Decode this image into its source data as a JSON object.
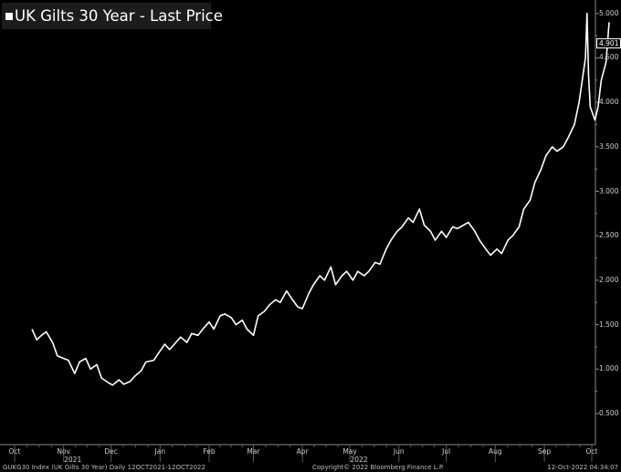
{
  "chart_data": {
    "type": "line",
    "title": "UK Gilts 30 Year - Last Price",
    "ylim": [
      0.5,
      5.5
    ],
    "yticks": [
      "0.500",
      "1.000",
      "1.500",
      "2.000",
      "2.500",
      "3.000",
      "3.500",
      "4.000",
      "4.500",
      "5.000"
    ],
    "last_value": "4.901",
    "xlim": [
      "2021-10-12",
      "2022-10-12"
    ],
    "xticks": [
      {
        "label": "Oct",
        "date": "2021-10-01"
      },
      {
        "label": "Nov",
        "date": "2021-11-01"
      },
      {
        "label": "Dec",
        "date": "2021-12-01"
      },
      {
        "label": "Jan",
        "date": "2022-01-01"
      },
      {
        "label": "Feb",
        "date": "2022-02-01"
      },
      {
        "label": "Mar",
        "date": "2022-03-01"
      },
      {
        "label": "Apr",
        "date": "2022-04-01"
      },
      {
        "label": "May",
        "date": "2022-05-01"
      },
      {
        "label": "Jun",
        "date": "2022-06-01"
      },
      {
        "label": "Jul",
        "date": "2022-07-01"
      },
      {
        "label": "Aug",
        "date": "2022-08-01"
      },
      {
        "label": "Sep",
        "date": "2022-09-01"
      },
      {
        "label": "Oct",
        "date": "2022-10-01"
      }
    ],
    "year_labels": [
      {
        "label": "2021",
        "date": "2021-11-01"
      },
      {
        "label": "2022",
        "date": "2022-05-01"
      }
    ],
    "series": [
      {
        "x": [
          "2021-10-12",
          "2021-10-15",
          "2021-10-18",
          "2021-10-21",
          "2021-10-25",
          "2021-10-28",
          "2021-11-01",
          "2021-11-04",
          "2021-11-08",
          "2021-11-11",
          "2021-11-15",
          "2021-11-18",
          "2021-11-22",
          "2021-11-25",
          "2021-11-29",
          "2021-12-02",
          "2021-12-06",
          "2021-12-09",
          "2021-12-13",
          "2021-12-16",
          "2021-12-20",
          "2021-12-23",
          "2021-12-28",
          "2021-12-31",
          "2022-01-04",
          "2022-01-07",
          "2022-01-11",
          "2022-01-14",
          "2022-01-18",
          "2022-01-21",
          "2022-01-25",
          "2022-01-28",
          "2022-02-01",
          "2022-02-04",
          "2022-02-08",
          "2022-02-11",
          "2022-02-15",
          "2022-02-18",
          "2022-02-22",
          "2022-02-25",
          "2022-03-01",
          "2022-03-04",
          "2022-03-08",
          "2022-03-11",
          "2022-03-15",
          "2022-03-18",
          "2022-03-22",
          "2022-03-25",
          "2022-03-29",
          "2022-04-01",
          "2022-04-05",
          "2022-04-08",
          "2022-04-12",
          "2022-04-15",
          "2022-04-19",
          "2022-04-22",
          "2022-04-26",
          "2022-04-29",
          "2022-05-03",
          "2022-05-06",
          "2022-05-10",
          "2022-05-13",
          "2022-05-17",
          "2022-05-20",
          "2022-05-24",
          "2022-05-27",
          "2022-05-31",
          "2022-06-03",
          "2022-06-07",
          "2022-06-10",
          "2022-06-14",
          "2022-06-17",
          "2022-06-21",
          "2022-06-24",
          "2022-06-28",
          "2022-07-01",
          "2022-07-05",
          "2022-07-08",
          "2022-07-12",
          "2022-07-15",
          "2022-07-19",
          "2022-07-22",
          "2022-07-26",
          "2022-07-29",
          "2022-08-02",
          "2022-08-05",
          "2022-08-09",
          "2022-08-12",
          "2022-08-16",
          "2022-08-19",
          "2022-08-23",
          "2022-08-26",
          "2022-08-30",
          "2022-09-02",
          "2022-09-06",
          "2022-09-09",
          "2022-09-13",
          "2022-09-16",
          "2022-09-20",
          "2022-09-23",
          "2022-09-27",
          "2022-09-28",
          "2022-09-29",
          "2022-09-30",
          "2022-10-03",
          "2022-10-05",
          "2022-10-07",
          "2022-10-10",
          "2022-10-12"
        ],
        "y": [
          1.45,
          1.33,
          1.38,
          1.42,
          1.3,
          1.15,
          1.12,
          1.1,
          0.95,
          1.08,
          1.12,
          1.0,
          1.05,
          0.9,
          0.85,
          0.82,
          0.88,
          0.83,
          0.86,
          0.92,
          0.98,
          1.08,
          1.1,
          1.18,
          1.28,
          1.22,
          1.3,
          1.36,
          1.3,
          1.4,
          1.38,
          1.45,
          1.53,
          1.45,
          1.6,
          1.62,
          1.58,
          1.5,
          1.55,
          1.45,
          1.38,
          1.6,
          1.65,
          1.72,
          1.78,
          1.75,
          1.88,
          1.8,
          1.7,
          1.68,
          1.85,
          1.95,
          2.05,
          2.0,
          2.15,
          1.95,
          2.05,
          2.1,
          2.0,
          2.1,
          2.05,
          2.1,
          2.2,
          2.18,
          2.35,
          2.45,
          2.55,
          2.6,
          2.7,
          2.65,
          2.8,
          2.62,
          2.55,
          2.45,
          2.55,
          2.48,
          2.6,
          2.58,
          2.62,
          2.65,
          2.55,
          2.45,
          2.35,
          2.28,
          2.35,
          2.3,
          2.45,
          2.5,
          2.6,
          2.8,
          2.9,
          3.1,
          3.25,
          3.4,
          3.5,
          3.45,
          3.5,
          3.6,
          3.75,
          4.0,
          4.5,
          5.0,
          4.3,
          3.95,
          3.8,
          3.95,
          4.25,
          4.45,
          4.901
        ]
      }
    ]
  },
  "footer": {
    "left": "GUKG30 Index (UK Gilts 30 Year)  Daily 12OCT2021-12OCT2022",
    "center": "Copyright© 2022 Bloomberg Finance L.P.",
    "right": "12-Oct-2022 04:34:07"
  }
}
